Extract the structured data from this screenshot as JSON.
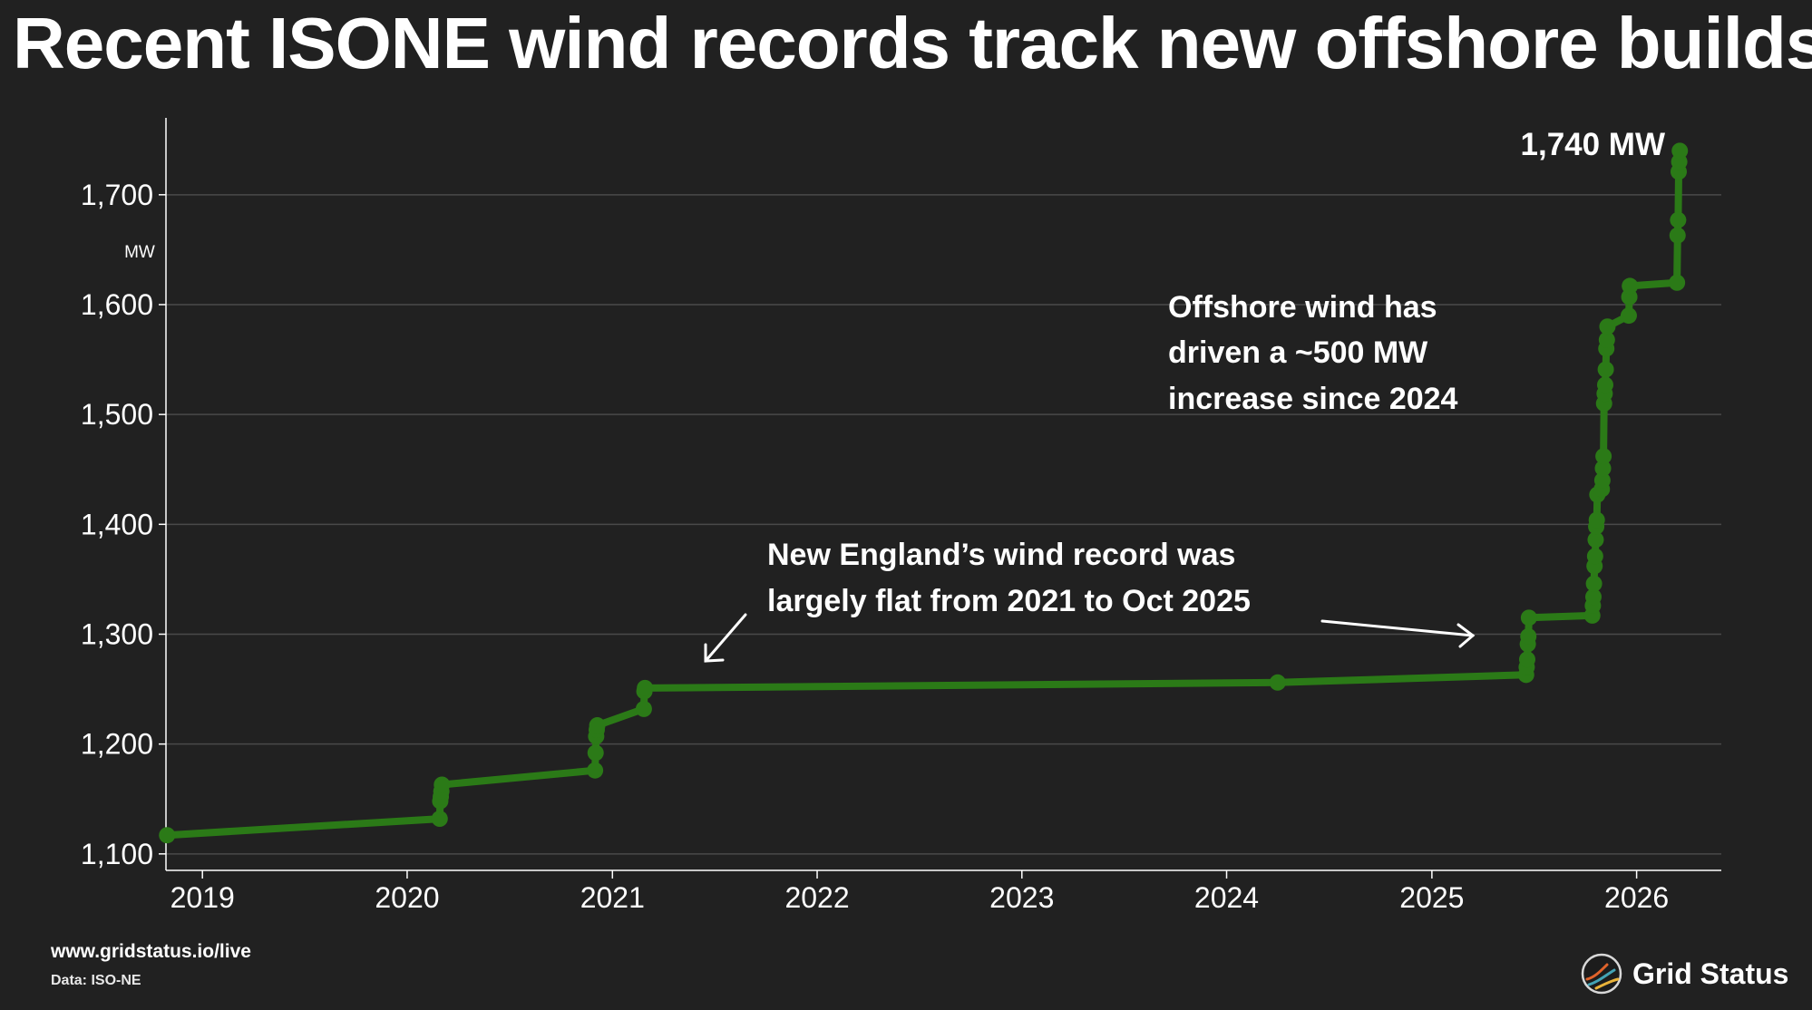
{
  "title": "Recent ISONE wind records track new offshore builds",
  "footer": {
    "url": "www.gridstatus.io/live",
    "source": "Data: ISO-NE"
  },
  "brand": {
    "name": "Grid Status",
    "icon": "grid-status-logo-icon"
  },
  "colors": {
    "background": "#212121",
    "line": "#2b7a17",
    "grid": "#4a4a4a",
    "text": "#ffffff"
  },
  "chart_data": {
    "type": "line",
    "title": "",
    "xlabel": "",
    "ylabel": "MW",
    "xlim": [
      "2018-10-28",
      "2026-06-01"
    ],
    "ylim": [
      1085,
      1770
    ],
    "x_ticks": [
      "2019",
      "2020",
      "2021",
      "2022",
      "2023",
      "2024",
      "2025",
      "2026"
    ],
    "y_ticks": [
      1100,
      1200,
      1300,
      1400,
      1500,
      1600,
      1700
    ],
    "y_tick_labels": [
      "1,100",
      "1,200",
      "1,300",
      "1,400",
      "1,500",
      "1,600",
      "1,700"
    ],
    "grid": "horizontal",
    "series": [
      {
        "points": [
          [
            "2018-10-30",
            1117
          ],
          [
            "2020-02-28",
            1132
          ],
          [
            "2020-02-29",
            1148
          ],
          [
            "2020-03-01",
            1152
          ],
          [
            "2020-03-02",
            1157
          ],
          [
            "2020-03-03",
            1163
          ],
          [
            "2020-12-01",
            1176
          ],
          [
            "2020-12-02",
            1192
          ],
          [
            "2020-12-03",
            1207
          ],
          [
            "2020-12-04",
            1213
          ],
          [
            "2020-12-05",
            1217
          ],
          [
            "2021-02-26",
            1232
          ],
          [
            "2021-02-27",
            1248
          ],
          [
            "2021-02-28",
            1251
          ],
          [
            "2024-04-01",
            1256
          ],
          [
            "2025-06-18",
            1263
          ],
          [
            "2025-06-19",
            1270
          ],
          [
            "2025-06-20",
            1277
          ],
          [
            "2025-06-21",
            1291
          ],
          [
            "2025-06-22",
            1298
          ],
          [
            "2025-06-23",
            1315
          ],
          [
            "2025-10-14",
            1317
          ],
          [
            "2025-10-15",
            1326
          ],
          [
            "2025-10-16",
            1334
          ],
          [
            "2025-10-17",
            1346
          ],
          [
            "2025-10-18",
            1362
          ],
          [
            "2025-10-19",
            1371
          ],
          [
            "2025-10-20",
            1386
          ],
          [
            "2025-10-21",
            1398
          ],
          [
            "2025-10-22",
            1404
          ],
          [
            "2025-10-23",
            1427
          ],
          [
            "2025-10-31",
            1432
          ],
          [
            "2025-11-01",
            1440
          ],
          [
            "2025-11-02",
            1451
          ],
          [
            "2025-11-03",
            1462
          ],
          [
            "2025-11-04",
            1510
          ],
          [
            "2025-11-05",
            1519
          ],
          [
            "2025-11-06",
            1527
          ],
          [
            "2025-11-07",
            1541
          ],
          [
            "2025-11-08",
            1560
          ],
          [
            "2025-11-09",
            1568
          ],
          [
            "2025-11-10",
            1580
          ],
          [
            "2025-12-18",
            1590
          ],
          [
            "2025-12-19",
            1607
          ],
          [
            "2025-12-20",
            1617
          ],
          [
            "2026-03-14",
            1620
          ],
          [
            "2026-03-15",
            1663
          ],
          [
            "2026-03-16",
            1677
          ],
          [
            "2026-03-17",
            1721
          ],
          [
            "2026-03-18",
            1730
          ],
          [
            "2026-03-19",
            1740
          ]
        ]
      }
    ],
    "annotations": [
      {
        "text": "1,740 MW"
      },
      {
        "lines": [
          "Offshore wind has",
          "driven a ~500 MW",
          "increase since 2024"
        ]
      },
      {
        "lines": [
          "New England’s wind record was",
          "largely flat from 2021 to Oct 2025"
        ]
      }
    ]
  }
}
